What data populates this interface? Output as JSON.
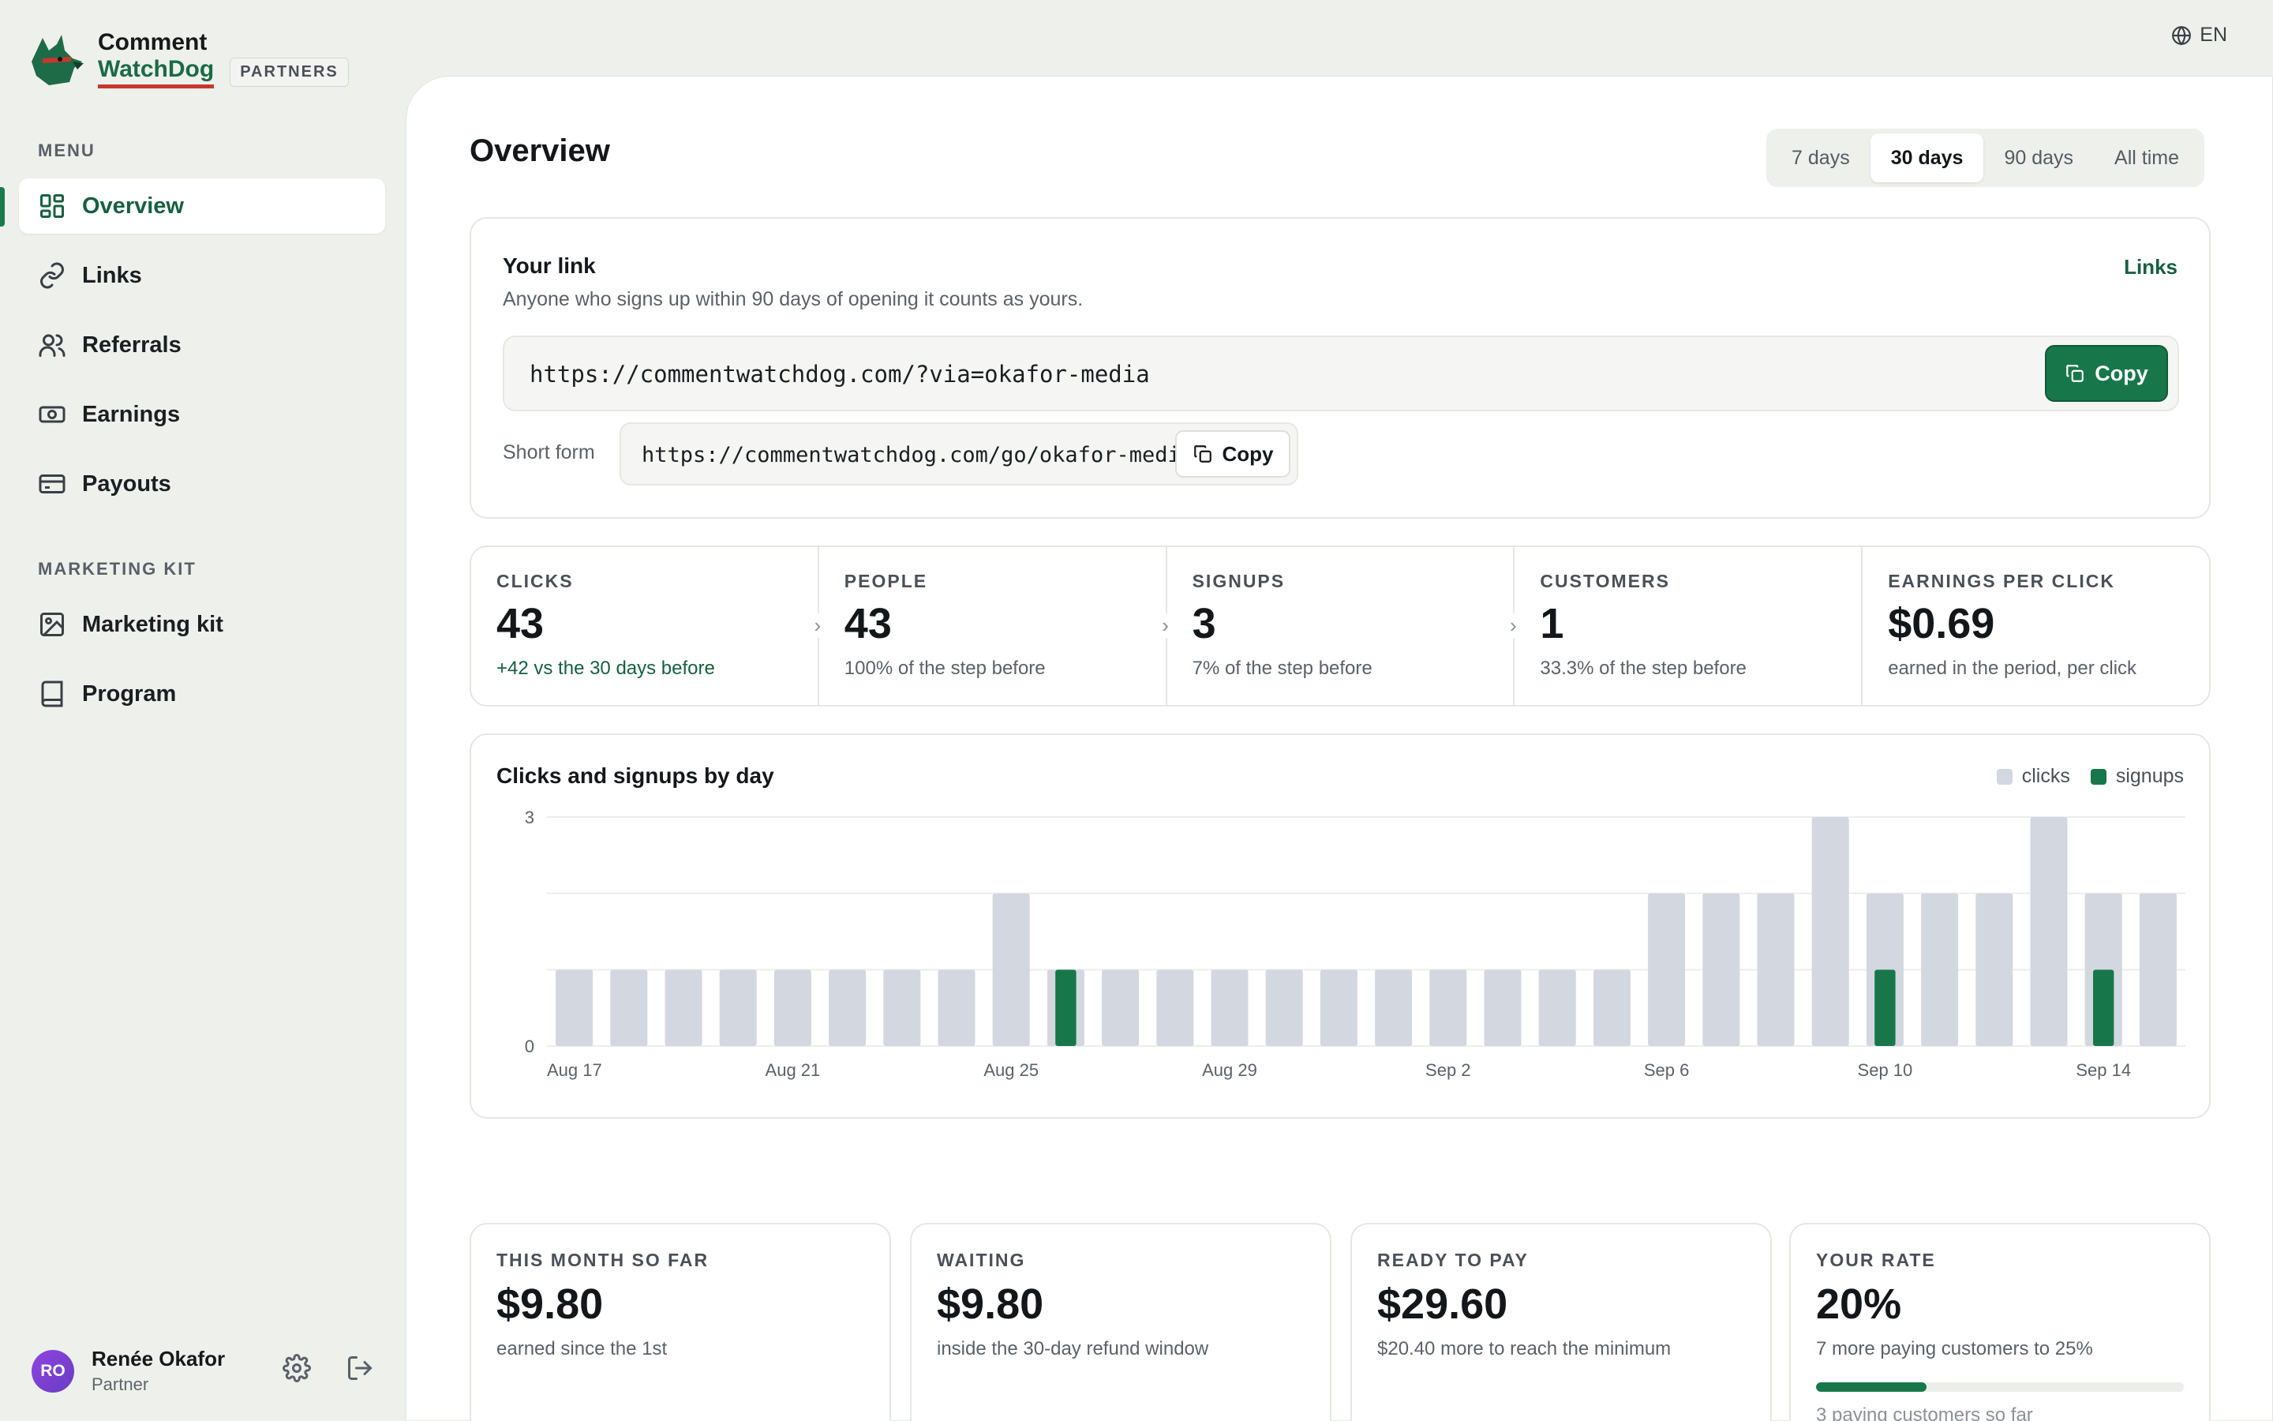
{
  "brand": {
    "line1": "Comment",
    "line2": "WatchDog",
    "badge": "PARTNERS"
  },
  "language": "EN",
  "sidebar": {
    "menu_label": "MENU",
    "items": [
      {
        "label": "Overview",
        "icon": "grid-icon",
        "active": true
      },
      {
        "label": "Links",
        "icon": "link-icon"
      },
      {
        "label": "Referrals",
        "icon": "users-icon"
      },
      {
        "label": "Earnings",
        "icon": "money-icon"
      },
      {
        "label": "Payouts",
        "icon": "card-icon"
      }
    ],
    "kit_label": "MARKETING KIT",
    "kit_items": [
      {
        "label": "Marketing kit",
        "icon": "image-icon"
      },
      {
        "label": "Program",
        "icon": "book-icon"
      }
    ]
  },
  "user": {
    "initials": "RO",
    "name": "Renée Okafor",
    "role": "Partner"
  },
  "page": {
    "title": "Overview"
  },
  "range": {
    "options": [
      "7 days",
      "30 days",
      "90 days",
      "All time"
    ],
    "selected": "30 days"
  },
  "link_card": {
    "title": "Your link",
    "subtitle": "Anyone who signs up within 90 days of opening it counts as yours.",
    "links_label": "Links",
    "url": "https://commentwatchdog.com/?via=okafor-media",
    "copy_label": "Copy",
    "short_label": "Short form",
    "short_url": "https://commentwatchdog.com/go/okafor-media",
    "short_copy_label": "Copy"
  },
  "funnel": [
    {
      "label": "CLICKS",
      "value": "43",
      "note": "+42 vs the 30 days before",
      "accent": true
    },
    {
      "label": "PEOPLE",
      "value": "43",
      "note": "100% of the step before"
    },
    {
      "label": "SIGNUPS",
      "value": "3",
      "note": "7% of the step before"
    },
    {
      "label": "CUSTOMERS",
      "value": "1",
      "note": "33.3% of the step before"
    },
    {
      "label": "EARNINGS PER CLICK",
      "value": "$0.69",
      "note": "earned in the period, per click"
    }
  ],
  "chart_data": {
    "type": "bar",
    "title": "Clicks and signups by day",
    "categories": [
      "Aug 17",
      "Aug 18",
      "Aug 19",
      "Aug 20",
      "Aug 21",
      "Aug 22",
      "Aug 23",
      "Aug 24",
      "Aug 25",
      "Aug 26",
      "Aug 27",
      "Aug 28",
      "Aug 29",
      "Aug 30",
      "Aug 31",
      "Sep 1",
      "Sep 2",
      "Sep 3",
      "Sep 4",
      "Sep 5",
      "Sep 6",
      "Sep 7",
      "Sep 8",
      "Sep 9",
      "Sep 10",
      "Sep 11",
      "Sep 12",
      "Sep 13",
      "Sep 14",
      "Sep 15"
    ],
    "tick_labels": [
      "Aug 17",
      "Aug 21",
      "Aug 25",
      "Aug 29",
      "Sep 2",
      "Sep 6",
      "Sep 10",
      "Sep 14"
    ],
    "series": [
      {
        "name": "clicks",
        "color": "#d3d7df",
        "values": [
          1,
          1,
          1,
          1,
          1,
          1,
          1,
          1,
          2,
          1,
          1,
          1,
          1,
          1,
          1,
          1,
          1,
          1,
          1,
          1,
          2,
          2,
          2,
          3,
          2,
          2,
          2,
          3,
          2,
          2
        ]
      },
      {
        "name": "signups",
        "color": "#17774a",
        "values": [
          0,
          0,
          0,
          0,
          0,
          0,
          0,
          0,
          0,
          1,
          0,
          0,
          0,
          0,
          0,
          0,
          0,
          0,
          0,
          0,
          0,
          0,
          0,
          0,
          1,
          0,
          0,
          0,
          1,
          0
        ]
      }
    ],
    "ylim": [
      0,
      3
    ],
    "y_ticks": [
      "0",
      "3"
    ],
    "legend": "top-right",
    "grid": true
  },
  "stats": [
    {
      "label": "THIS MONTH SO FAR",
      "value": "$9.80",
      "note": "earned since the 1st"
    },
    {
      "label": "WAITING",
      "value": "$9.80",
      "note": "inside the 30-day refund window"
    },
    {
      "label": "READY TO PAY",
      "value": "$29.60",
      "note": "$20.40 more to reach the minimum"
    },
    {
      "label": "YOUR RATE",
      "value": "20%",
      "note": "7 more paying customers to 25%",
      "progress": 0.3,
      "progress_note": "3 paying customers so far"
    }
  ]
}
